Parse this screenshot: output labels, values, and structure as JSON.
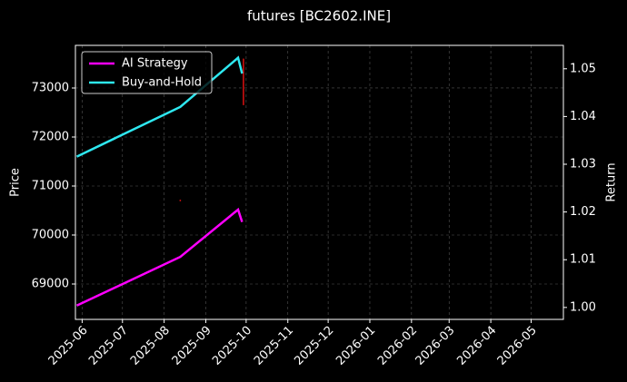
{
  "chart_data": {
    "type": "line",
    "title": "futures [BC2602.INE]",
    "ylabel": "Price",
    "y2label": "Return",
    "x": [
      "2025-05-28",
      "2025-08-13",
      "2025-09-25",
      "2025-09-28"
    ],
    "series": [
      {
        "name": "AI Strategy",
        "color": "#ff00ff",
        "axis": "y2",
        "values": [
          1.0004,
          1.0106,
          1.0205,
          1.0179
        ]
      },
      {
        "name": "Buy-and-Hold",
        "color": "#2ee8f0",
        "axis": "y2",
        "values": [
          1.0316,
          1.042,
          1.0523,
          1.049
        ]
      }
    ],
    "price_bars": {
      "color": "#dd1111",
      "x": [
        "2025-08-13",
        "2025-09-29"
      ],
      "low": [
        70690,
        72650
      ],
      "high": [
        70720,
        73600
      ]
    },
    "xlim": [
      "2025-05-27",
      "2026-05-25"
    ],
    "xticks": [
      "2025-06",
      "2025-07",
      "2025-08",
      "2025-09",
      "2025-10",
      "2025-11",
      "2025-12",
      "2026-01",
      "2026-02",
      "2026-03",
      "2026-04",
      "2026-05"
    ],
    "ylim": [
      68278,
      73870
    ],
    "yticks": [
      69000,
      70000,
      71000,
      72000,
      73000
    ],
    "y2lim": [
      0.9975,
      1.0549
    ],
    "y2ticks": [
      {
        "value": 1.0,
        "label": "1.00"
      },
      {
        "value": 1.01,
        "label": "1.01"
      },
      {
        "value": 1.02,
        "label": "1.02"
      },
      {
        "value": 1.03,
        "label": "1.03"
      },
      {
        "value": 1.04,
        "label": "1.04"
      },
      {
        "value": 1.05,
        "label": "1.05"
      }
    ],
    "grid": true,
    "legend": "upper left"
  }
}
